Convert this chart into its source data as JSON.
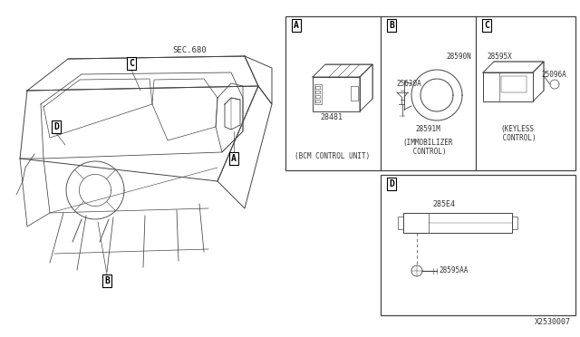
{
  "bg_color": "#ffffff",
  "line_color": "#444444",
  "text_color": "#333333",
  "title_doc": "X2530007",
  "sec_label": "SEC.680",
  "panel_A_label": "A",
  "panel_B_label": "B",
  "panel_C_label": "C",
  "panel_D_label": "D",
  "part_28481": "28481",
  "label_bcm": "(BCM CONTROL UNIT)",
  "part_25630A": "25630A",
  "part_28590N": "28590N",
  "part_28591M": "28591M",
  "label_immobilizer_1": "(IMMOBILIZER",
  "label_immobilizer_2": " CONTROL)",
  "part_28595X": "28595X",
  "part_25096A": "25096A",
  "label_keyless_1": "(KEYLESS",
  "label_keyless_2": " CONTROL)",
  "part_285E4": "285E4",
  "part_28595AA": "28595AA"
}
